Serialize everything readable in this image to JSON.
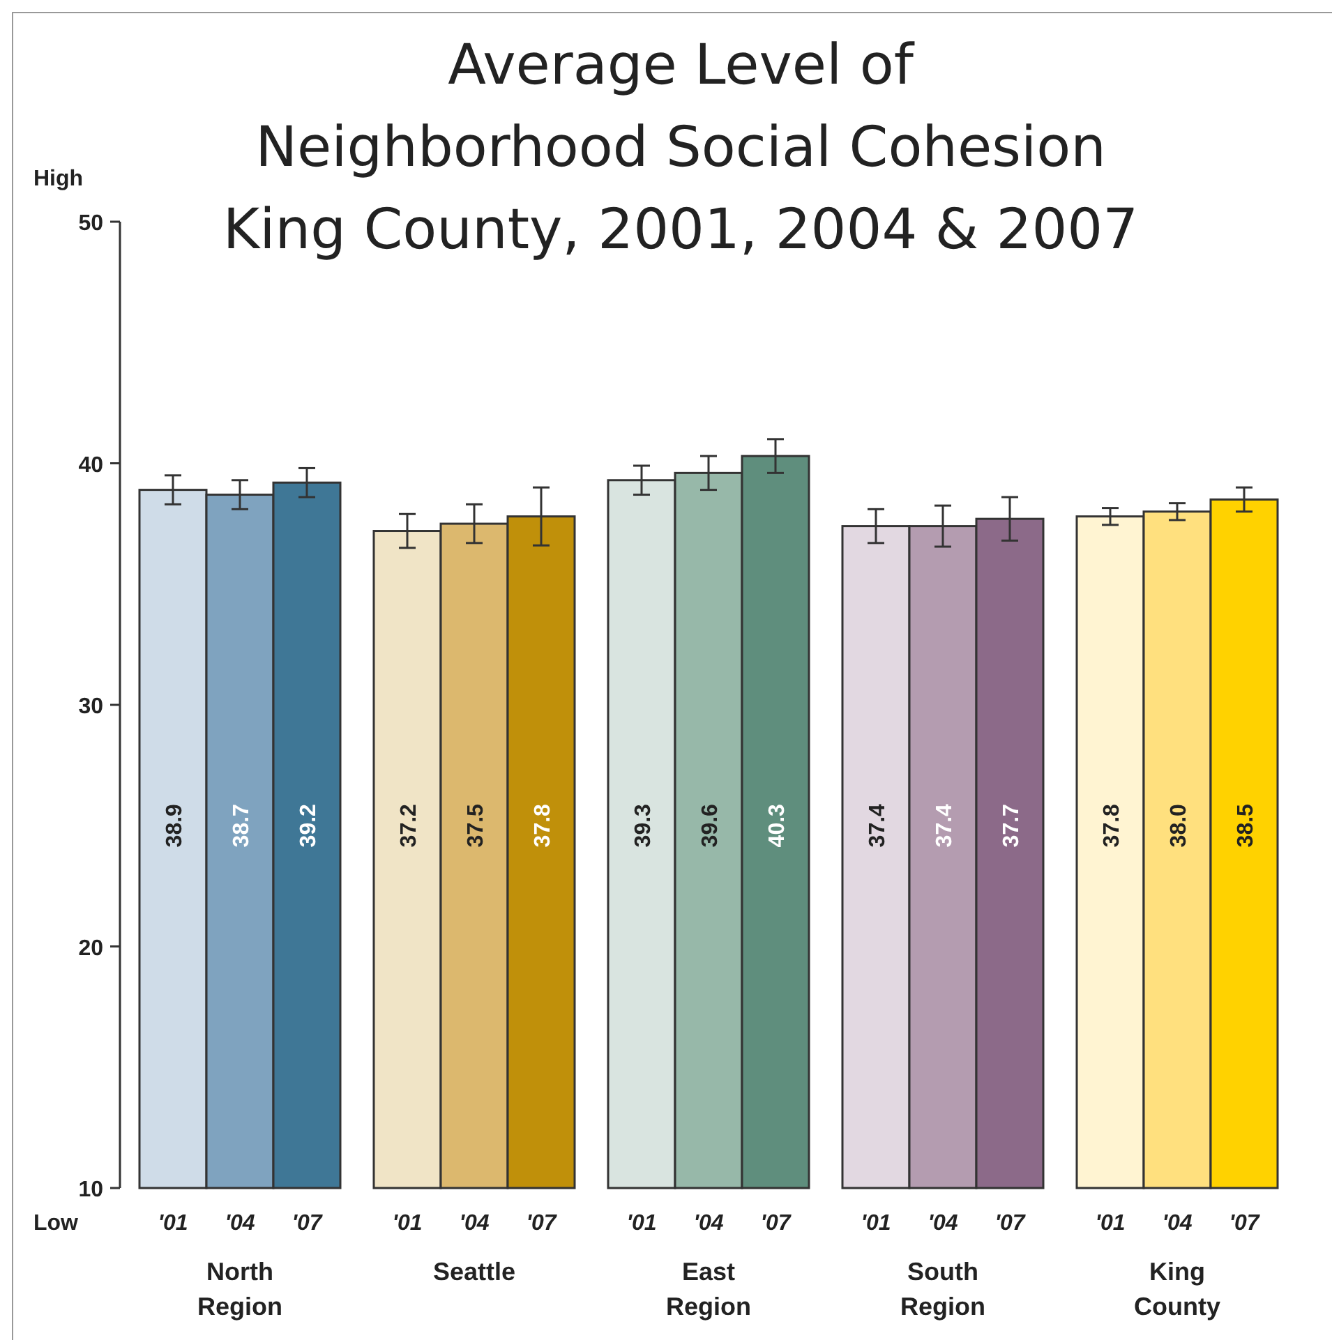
{
  "chart_data": {
    "type": "bar",
    "title": "Average Level of\nNeighborhood Social Cohesion\nKing County, 2001, 2004 & 2007",
    "categories": [
      "'01",
      "'04",
      "'07",
      "'01",
      "'04",
      "'07",
      "'01",
      "'04",
      "'07",
      "'01",
      "'04",
      "'07",
      "'01",
      "'04",
      "'07"
    ],
    "values": [
      38.9,
      38.7,
      39.2,
      37.2,
      37.5,
      37.8,
      39.3,
      39.6,
      40.3,
      37.4,
      37.4,
      37.7,
      37.8,
      38.0,
      38.5
    ],
    "errors": [
      0.6,
      0.6,
      0.6,
      0.7,
      0.8,
      1.2,
      0.6,
      0.7,
      0.7,
      0.7,
      0.85,
      0.9,
      0.35,
      0.35,
      0.5
    ],
    "colors": [
      "#cfdce8",
      "#7fa3bf",
      "#3f7796",
      "#f0e4c6",
      "#dcb86e",
      "#c0900a",
      "#d9e4e0",
      "#97b8a9",
      "#5f8e7d",
      "#e2d8e1",
      "#b49cb0",
      "#8c6a89",
      "#fff4d2",
      "#ffe07e",
      "#ffd200"
    ],
    "value_labels": [
      "38.9",
      "38.7",
      "39.2",
      "37.2",
      "37.5",
      "37.8",
      "39.3",
      "39.6",
      "40.3",
      "37.4",
      "37.4",
      "37.7",
      "37.8",
      "38.0",
      "38.5"
    ],
    "ylim": [
      10,
      50
    ],
    "yticks": [
      10,
      20,
      30,
      40,
      50
    ],
    "annotations": [
      "High",
      "Low",
      "North Region",
      "Seattle",
      "East Region",
      "South Region",
      "King County"
    ]
  }
}
